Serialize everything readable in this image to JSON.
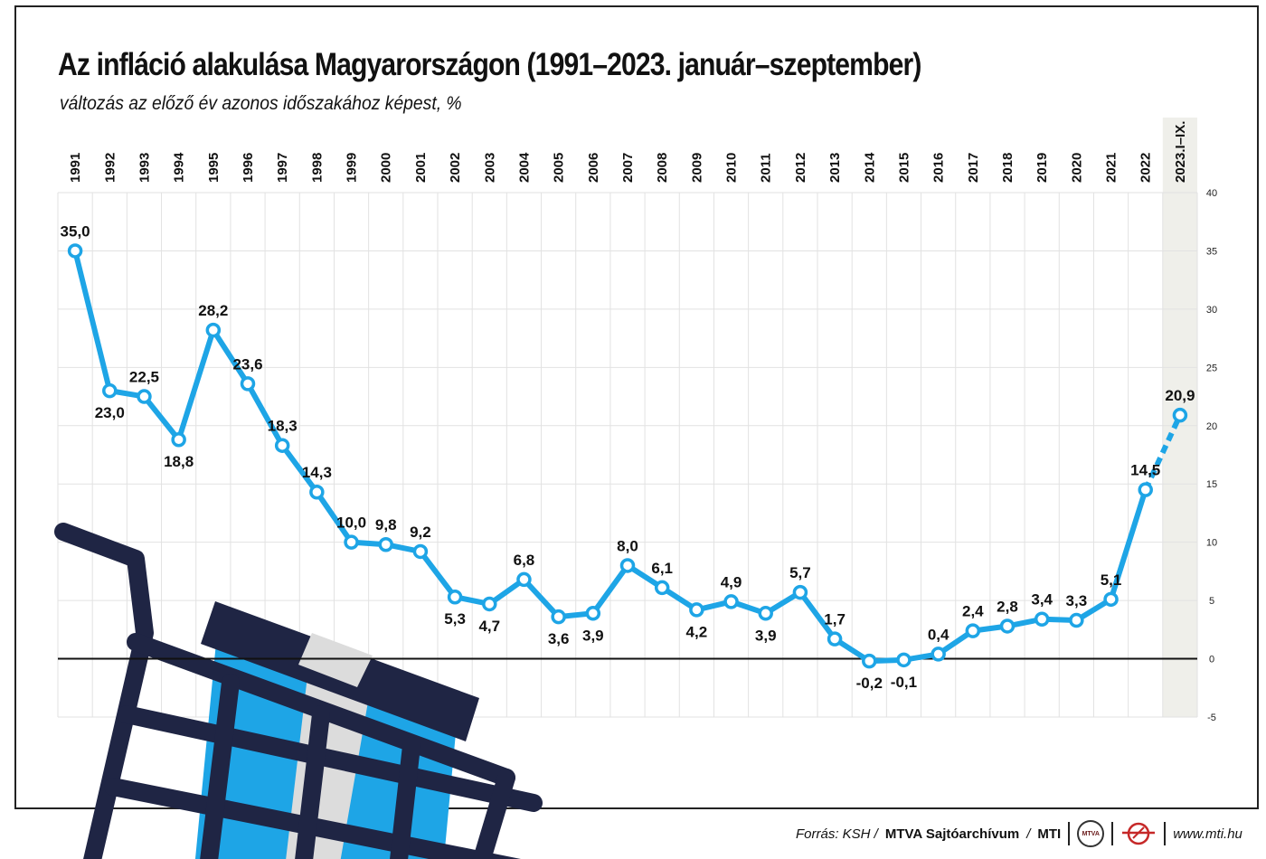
{
  "header": {
    "title": "Az infláció alakulása Magyarországon (1991–2023. január–szeptember)",
    "subtitle": "változás az előző év azonos időszakához képest, %"
  },
  "footer": {
    "source_prefix": "Forrás: KSH /",
    "archive": "MTVA Sajtóarchívum",
    "agency": "MTI",
    "mtva_logo_text": "MTVA",
    "website": "www.mti.hu"
  },
  "colors": {
    "line": "#1ea5e6",
    "dark_navy": "#1f2544",
    "grid": "#e2e2e2",
    "highlight_band": "#efefea"
  },
  "icons": [
    "shopping-cart-illustration",
    "mtva-logo",
    "mti-logo"
  ],
  "chart_data": {
    "type": "line",
    "title": "Az infláció alakulása Magyarországon (1991–2023. január–szeptember)",
    "subtitle": "változás az előző év azonos időszakához képest, %",
    "categories": [
      "1991",
      "1992",
      "1993",
      "1994",
      "1995",
      "1996",
      "1997",
      "1998",
      "1999",
      "2000",
      "2001",
      "2002",
      "2003",
      "2004",
      "2005",
      "2006",
      "2007",
      "2008",
      "2009",
      "2010",
      "2011",
      "2012",
      "2013",
      "2014",
      "2015",
      "2016",
      "2017",
      "2018",
      "2019",
      "2020",
      "2021",
      "2022",
      "2023.I–IX."
    ],
    "values": [
      35.0,
      23.0,
      22.5,
      18.8,
      28.2,
      23.6,
      18.3,
      14.3,
      10.0,
      9.8,
      9.2,
      5.3,
      4.7,
      6.8,
      3.6,
      3.9,
      8.0,
      6.1,
      4.2,
      4.9,
      3.9,
      5.7,
      1.7,
      -0.2,
      -0.1,
      0.4,
      2.4,
      2.8,
      3.4,
      3.3,
      5.1,
      14.5,
      20.9
    ],
    "value_labels": [
      "35,0",
      "23,0",
      "22,5",
      "18,8",
      "28,2",
      "23,6",
      "18,3",
      "14,3",
      "10,0",
      "9,8",
      "9,2",
      "5,3",
      "4,7",
      "6,8",
      "3,6",
      "3,9",
      "8,0",
      "6,1",
      "4,2",
      "4,9",
      "3,9",
      "5,7",
      "1,7",
      "-0,2",
      "-0,1",
      "0,4",
      "2,4",
      "2,8",
      "3,4",
      "3,3",
      "5,1",
      "14,5",
      "20,9"
    ],
    "label_position": [
      "above",
      "below",
      "above",
      "below",
      "above",
      "above",
      "above",
      "above",
      "above",
      "above",
      "above",
      "below",
      "below",
      "above",
      "below",
      "below",
      "above",
      "above",
      "below",
      "above",
      "below",
      "above",
      "above",
      "below",
      "below",
      "above",
      "above",
      "above",
      "above",
      "above",
      "above",
      "above",
      "above"
    ],
    "last_segment_style": "dashed",
    "highlight_last_category": true,
    "ylim": [
      -5,
      40
    ],
    "yticks": [
      -5,
      0,
      5,
      10,
      15,
      20,
      25,
      30,
      35,
      40
    ],
    "ytick_labels": [
      "-5",
      "0",
      "5",
      "10",
      "15",
      "20",
      "25",
      "30",
      "35",
      "40"
    ],
    "y_axis_side": "right",
    "x_labels_position": "top",
    "x_labels_rotation": "vertical",
    "grid": true
  }
}
